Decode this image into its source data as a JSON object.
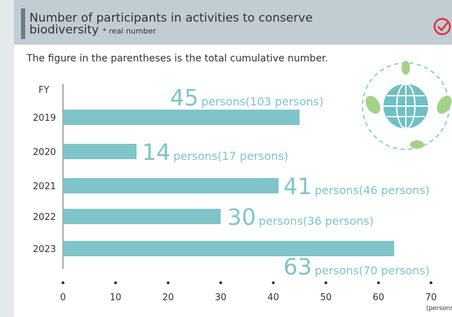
{
  "chart_data": {
    "type": "bar",
    "orientation": "horizontal",
    "title": "Number of participants in activities to conserve biodiversity",
    "subtitle": "* real number",
    "note": "The figure in the parentheses is the total cumulative number.",
    "y_axis_label": "FY",
    "x_axis_label": "(persons)",
    "categories": [
      "2019",
      "2020",
      "2021",
      "2022",
      "2023"
    ],
    "values": [
      45,
      14,
      41,
      30,
      63
    ],
    "value_units": [
      "persons",
      "persons",
      "persons",
      "persons",
      "persons"
    ],
    "cumulative_labels": [
      "(103 persons)",
      "(17 persons)",
      "(46 persons)",
      "(36 persons)",
      "(70 persons)"
    ],
    "color": "#7fc4c8",
    "xlim": [
      0,
      70
    ],
    "xticks": [
      0,
      10,
      20,
      30,
      40,
      50,
      60,
      70
    ]
  }
}
